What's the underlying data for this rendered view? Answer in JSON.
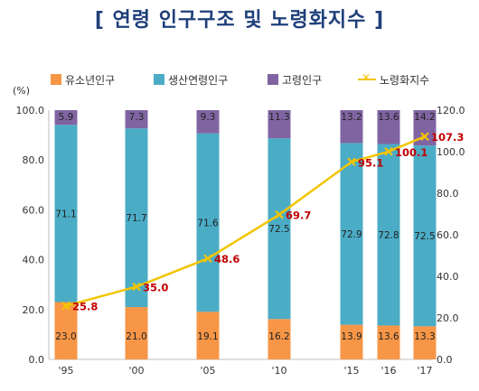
{
  "title": "[ 연령 인구구조 및 노령화지수 ]",
  "y_unit": "(%)",
  "colors": {
    "youth": "#f79646",
    "working": "#4bacc6",
    "elderly": "#8064a2",
    "aging_index": "#f2c500",
    "aging_label": "#c00000"
  },
  "chart_data": {
    "type": "bar",
    "stacked": true,
    "categories": [
      "'95",
      "'00",
      "'05",
      "'10",
      "'15",
      "'16",
      "'17"
    ],
    "series": [
      {
        "name": "유소년인구",
        "values": [
          23.0,
          21.0,
          19.1,
          16.2,
          13.9,
          13.6,
          13.3
        ],
        "labels": [
          "23.0",
          "21.0",
          "19.1",
          "16.2",
          "13.9",
          "13.6",
          "13.3"
        ]
      },
      {
        "name": "생산연령인구",
        "values": [
          71.1,
          71.7,
          71.6,
          72.5,
          72.9,
          72.8,
          72.5
        ],
        "labels": [
          "71.1",
          "71.7",
          "71.6",
          "72.5",
          "72.9",
          "72.8",
          "72.5"
        ]
      },
      {
        "name": "고령인구",
        "values": [
          5.9,
          7.3,
          9.3,
          11.3,
          13.2,
          13.6,
          14.2
        ],
        "labels": [
          "5.9",
          "7.3",
          "9.3",
          "11.3",
          "13.2",
          "13.6",
          "14.2"
        ]
      }
    ],
    "line_series": {
      "name": "노령화지수",
      "axis": "right",
      "values": [
        25.8,
        35.0,
        48.6,
        69.7,
        95.1,
        100.1,
        107.3
      ],
      "labels": [
        "25.8",
        "35.0",
        "48.6",
        "69.7",
        "95.1",
        "100.1",
        "107.3"
      ]
    },
    "y_left": {
      "min": 0,
      "max": 100,
      "ticks": [
        "0.0",
        "20.0",
        "40.0",
        "60.0",
        "80.0",
        "100.0"
      ]
    },
    "y_right": {
      "min": 0,
      "max": 120,
      "ticks": [
        "0.0",
        "20.0",
        "40.0",
        "60.0",
        "80.0",
        "100.0",
        "120.0"
      ]
    },
    "grid": false,
    "legend": "top"
  }
}
